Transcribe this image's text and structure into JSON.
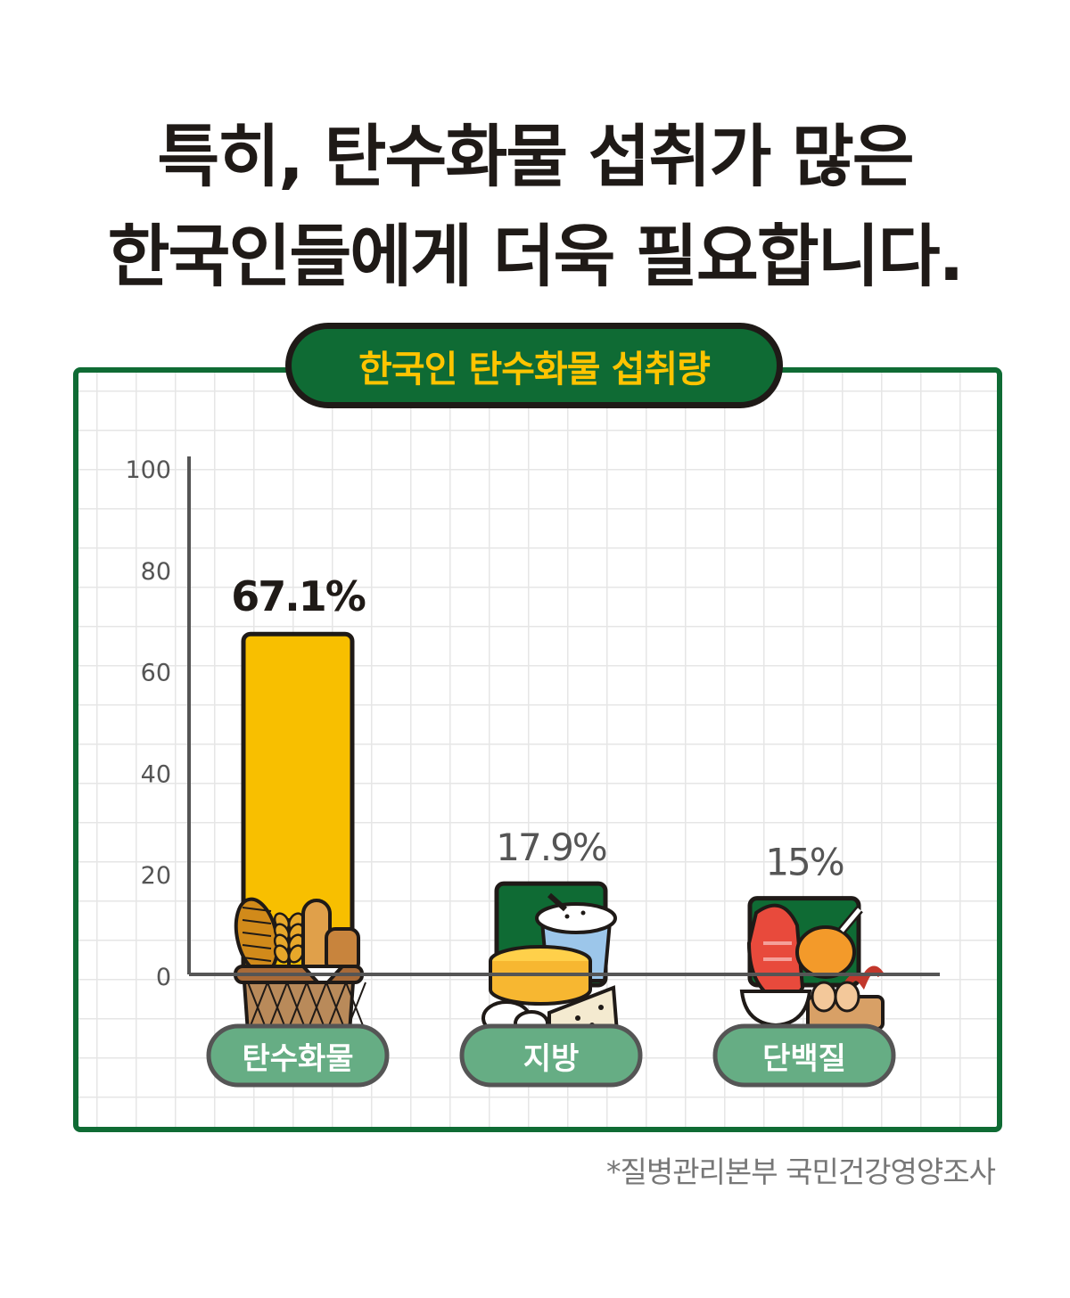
{
  "headline": {
    "line1": "특히, 탄수화물 섭취가 많은",
    "line2": "한국인들에게 더욱 필요합니다."
  },
  "source": "*질병관리본부 국민건강영양조사",
  "colors": {
    "headline": "#1f1a17",
    "frame_green": "#0f6b34",
    "title_text": "#ffc400",
    "bar_yellow": "#f8bf00",
    "bar_green": "#0f6b34",
    "pill_green": "#66ad84",
    "outline": "#1f1a17"
  },
  "chart_data": {
    "type": "bar",
    "title": "한국인 탄수화물 섭취량",
    "categories": [
      "탄수화물",
      "지방",
      "단백질"
    ],
    "values": [
      67.1,
      17.9,
      15
    ],
    "value_labels": [
      "67.1%",
      "17.9%",
      "15%"
    ],
    "ylim": [
      0,
      100
    ],
    "yticks": [
      0,
      20,
      40,
      60,
      80,
      100
    ],
    "grid": true,
    "bar_colors": [
      "#f8bf00",
      "#0f6b34",
      "#0f6b34"
    ],
    "icons": [
      "bread-basket-icon",
      "cheese-yogurt-icon",
      "meat-egg-icon"
    ]
  }
}
